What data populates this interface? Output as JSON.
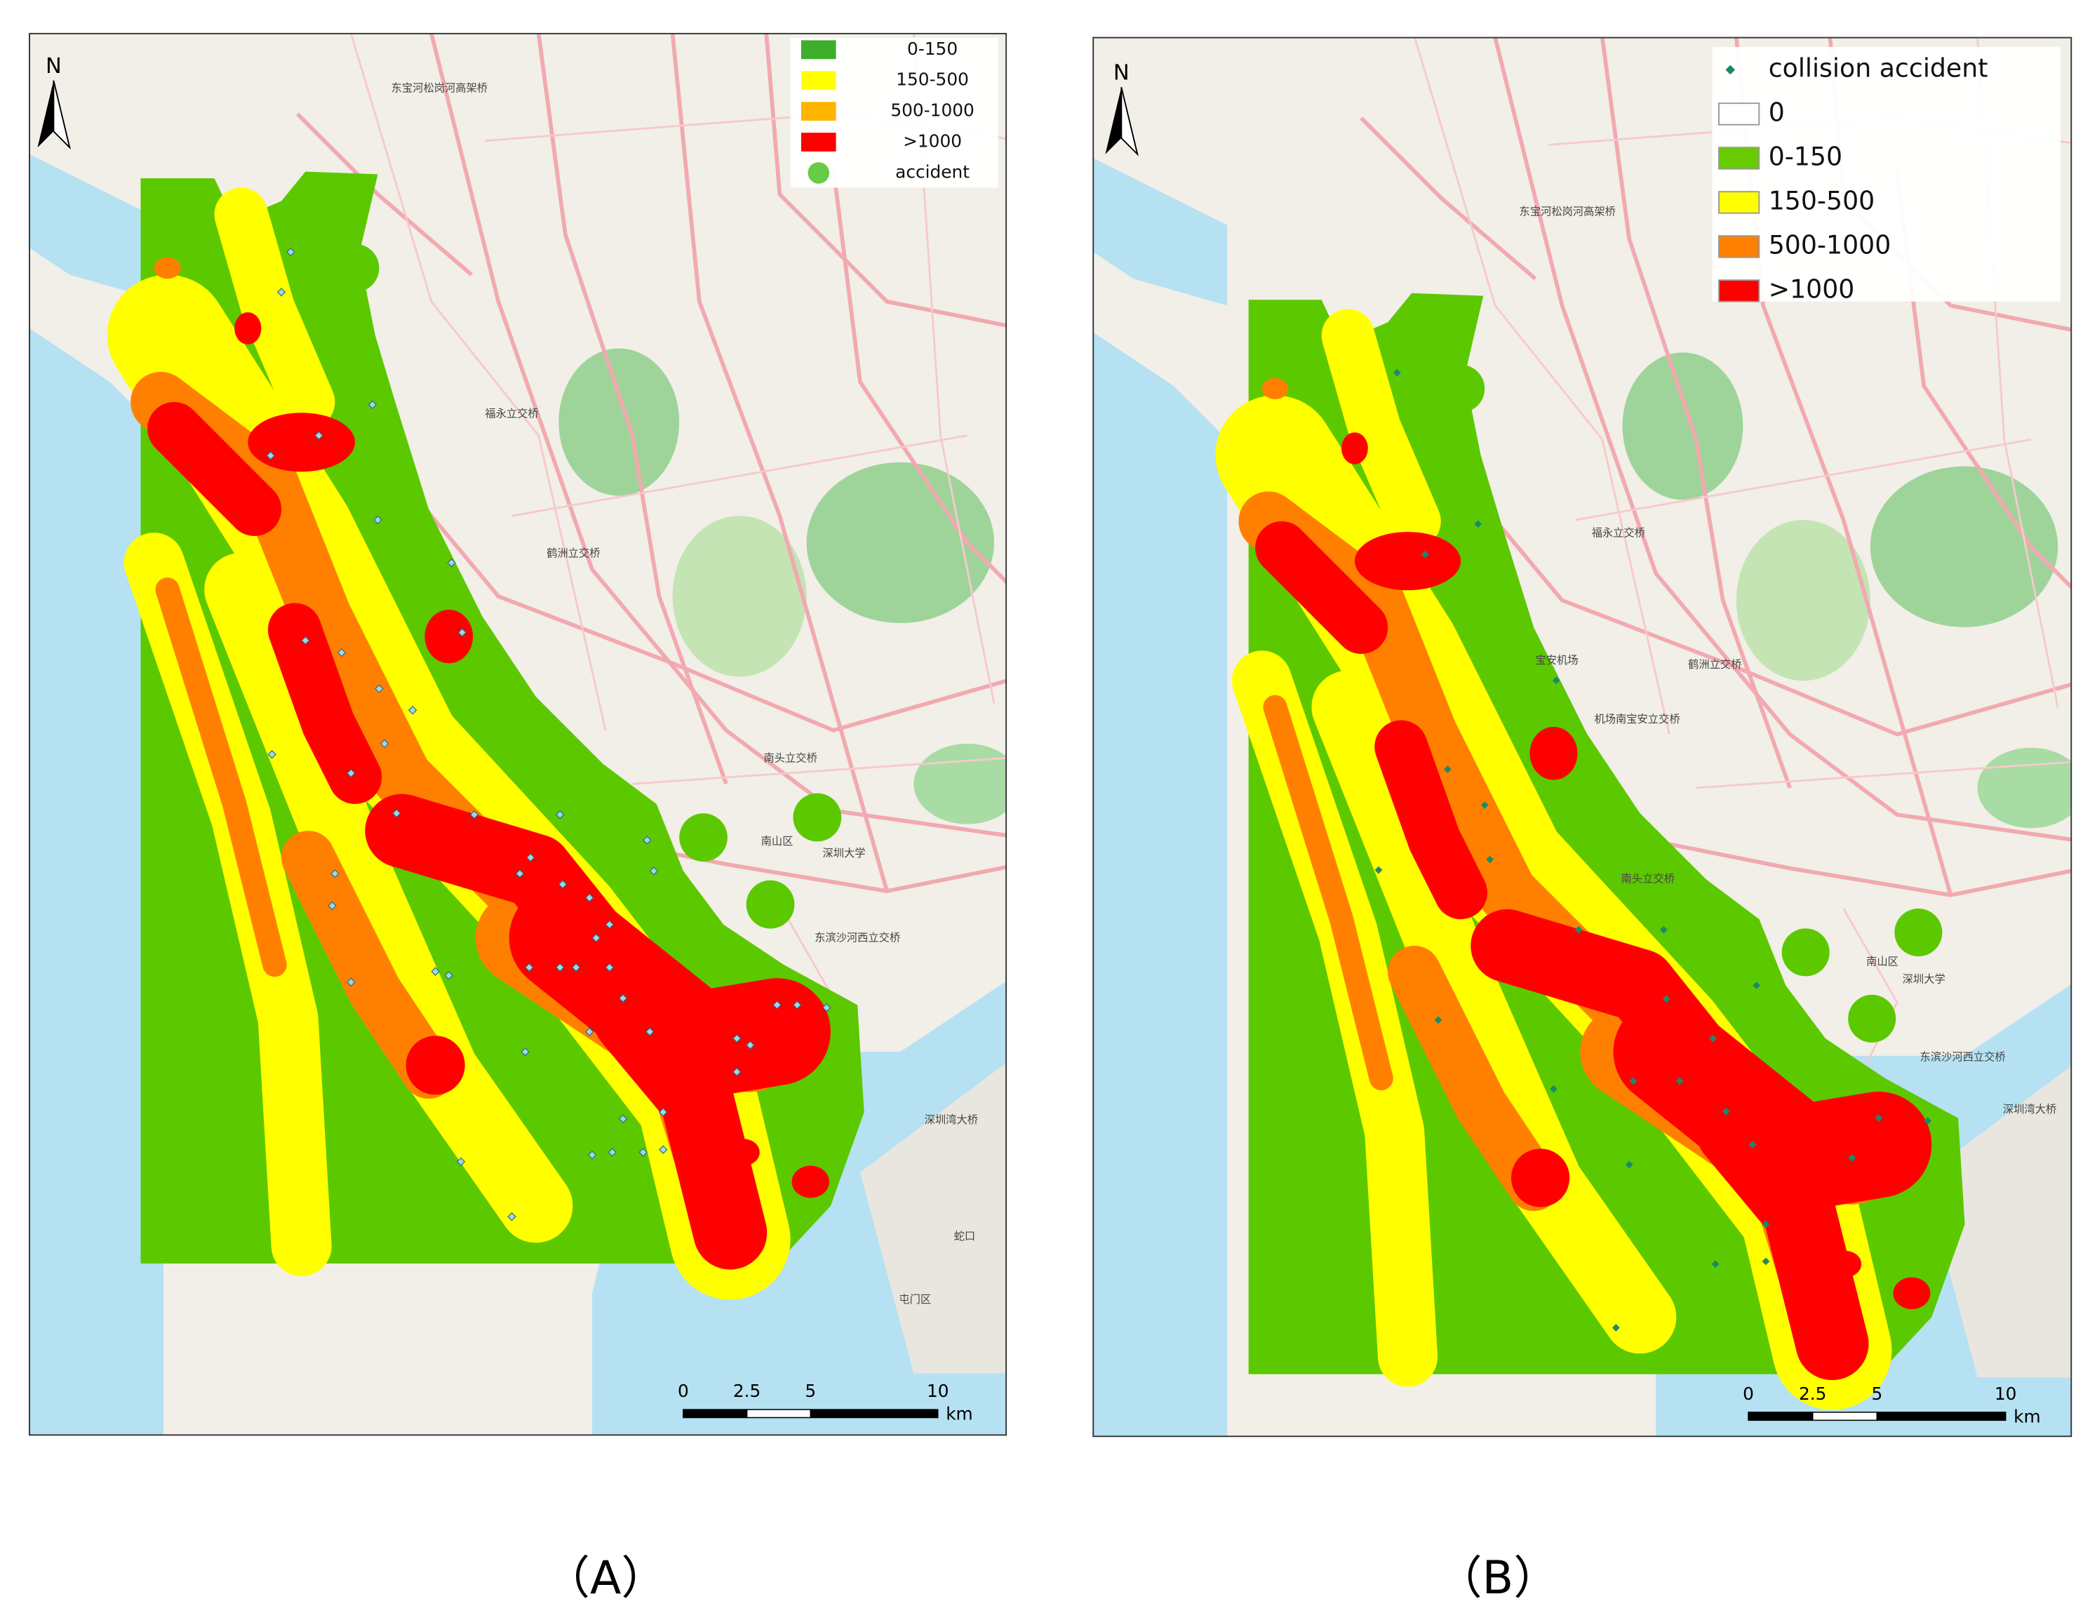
{
  "panels": [
    {
      "caption": "（A）",
      "north": "N",
      "legend": [
        {
          "label": "0-150",
          "color": "#3fae2a",
          "symbol": "box"
        },
        {
          "label": "150-500",
          "color": "#ffff00",
          "symbol": "box"
        },
        {
          "label": "500-1000",
          "color": "#ffb400",
          "symbol": "box"
        },
        {
          "label": ">1000",
          "color": "#ff0000",
          "symbol": "box"
        },
        {
          "label": "accident",
          "color": "#66cc44",
          "symbol": "circle"
        }
      ],
      "scale": {
        "ticks": [
          "0",
          "2.5",
          "5",
          "10"
        ],
        "unit": "km"
      },
      "place_labels": [
        "东宝河松岗河高架桥",
        "福永立交桥",
        "鹤洲立交桥",
        "南头立交桥",
        "南山区",
        "深圳大学",
        "东滨沙河西立交桥",
        "深圳湾大桥",
        "蛇口",
        "屯门区"
      ]
    },
    {
      "caption": "（B）",
      "north": "N",
      "legend": [
        {
          "label": "collision accident",
          "color": "#1a8a6a",
          "symbol": "diamond"
        },
        {
          "label": "0",
          "color": "#ffffff",
          "symbol": "box"
        },
        {
          "label": "0-150",
          "color": "#66cc00",
          "symbol": "box"
        },
        {
          "label": "150-500",
          "color": "#ffff00",
          "symbol": "box"
        },
        {
          "label": "500-1000",
          "color": "#ff8000",
          "symbol": "box"
        },
        {
          "label": ">1000",
          "color": "#ff0000",
          "symbol": "box"
        }
      ],
      "scale": {
        "ticks": [
          "0",
          "2.5",
          "5",
          "10"
        ],
        "unit": "km"
      },
      "place_labels": [
        "东宝河松岗河高架桥",
        "福永立交桥",
        "鹤洲立交桥",
        "南头立交桥",
        "南山区",
        "深圳大学",
        "东滨沙河西立交桥",
        "深圳湾大桥",
        "宝安机场",
        "机场南宝安立交桥"
      ]
    }
  ]
}
